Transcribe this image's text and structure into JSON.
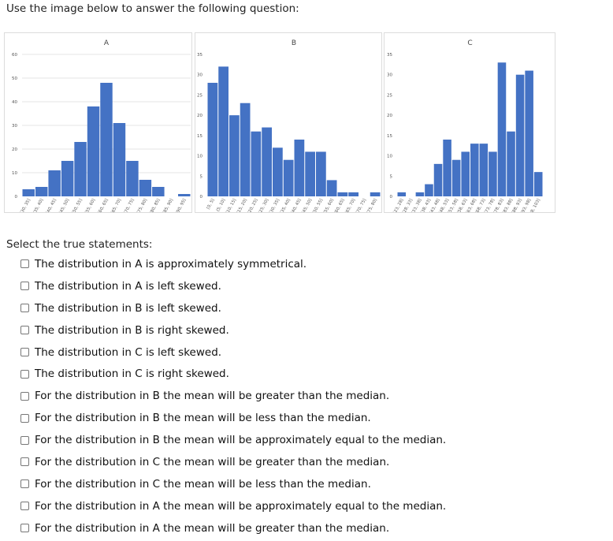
{
  "prompt": "Use the image below to answer the following question:",
  "select_label": "Select the true statements:",
  "colors": {
    "bar": "#4472c4",
    "grid": "#e6e6e6",
    "tick": "#555555"
  },
  "options": [
    "The distribution in A is approximately symmetrical.",
    "The distribution in A is left skewed.",
    "The distribution in B is left skewed.",
    "The distribution in B is right skewed.",
    "The distribution in C is left skewed.",
    "The distribution in C is right skewed.",
    "For the distribution in B the mean will be greater than the median.",
    "For the distribution in B the mean will be less than the median.",
    "For the distribution in B the mean will be approximately equal to the median.",
    "For the distribution in C the mean will be greater than the median.",
    "For the distribution in C the mean will be less than the median.",
    "For the distribution in A the mean will be approximately equal to the median.",
    "For the distribution in A the mean will be greater than the median."
  ],
  "chart_data": [
    {
      "type": "bar",
      "title": "A",
      "ylim": [
        0,
        60
      ],
      "yticks": [
        0,
        10,
        20,
        30,
        40,
        50,
        60
      ],
      "grid": true,
      "categories": [
        "[30, 35]",
        "(35, 40]",
        "(40, 45]",
        "(45, 50]",
        "(50, 55]",
        "(55, 60]",
        "(60, 65]",
        "(65, 70]",
        "(70, 75]",
        "(75, 80]",
        "(80, 85]",
        "(85, 90]",
        "(90, 95]"
      ],
      "values": [
        3,
        4,
        11,
        15,
        23,
        38,
        48,
        31,
        15,
        7,
        4,
        0,
        1
      ]
    },
    {
      "type": "bar",
      "title": "B",
      "ylim": [
        0,
        35
      ],
      "yticks": [
        0,
        5,
        10,
        15,
        20,
        25,
        30,
        35
      ],
      "grid": false,
      "categories": [
        "[0, 5]",
        "(5, 10]",
        "(10, 15]",
        "(15, 20]",
        "(20, 25]",
        "(25, 30]",
        "(30, 35]",
        "(35, 40]",
        "(40, 45]",
        "(45, 50]",
        "(50, 55]",
        "(55, 60]",
        "(60, 65]",
        "(65, 70]",
        "(70, 75]",
        "(75, 80]"
      ],
      "values": [
        28,
        32,
        20,
        23,
        16,
        17,
        12,
        9,
        14,
        11,
        11,
        4,
        1,
        1,
        0,
        1
      ]
    },
    {
      "type": "bar",
      "title": "C",
      "ylim": [
        0,
        35
      ],
      "yticks": [
        0,
        5,
        10,
        15,
        20,
        25,
        30,
        35
      ],
      "grid": false,
      "categories": [
        "[23, 28]",
        "(28, 33]",
        "(33, 38]",
        "(38, 43]",
        "(43, 48]",
        "(48, 53]",
        "(53, 58]",
        "(58, 63]",
        "(63, 68]",
        "(68, 73]",
        "(73, 78]",
        "(78, 83]",
        "(83, 88]",
        "(88, 93]",
        "(93, 98]",
        "(98, 103]"
      ],
      "values": [
        1,
        0,
        1,
        3,
        8,
        14,
        9,
        11,
        13,
        13,
        11,
        33,
        16,
        30,
        31,
        6
      ]
    }
  ]
}
